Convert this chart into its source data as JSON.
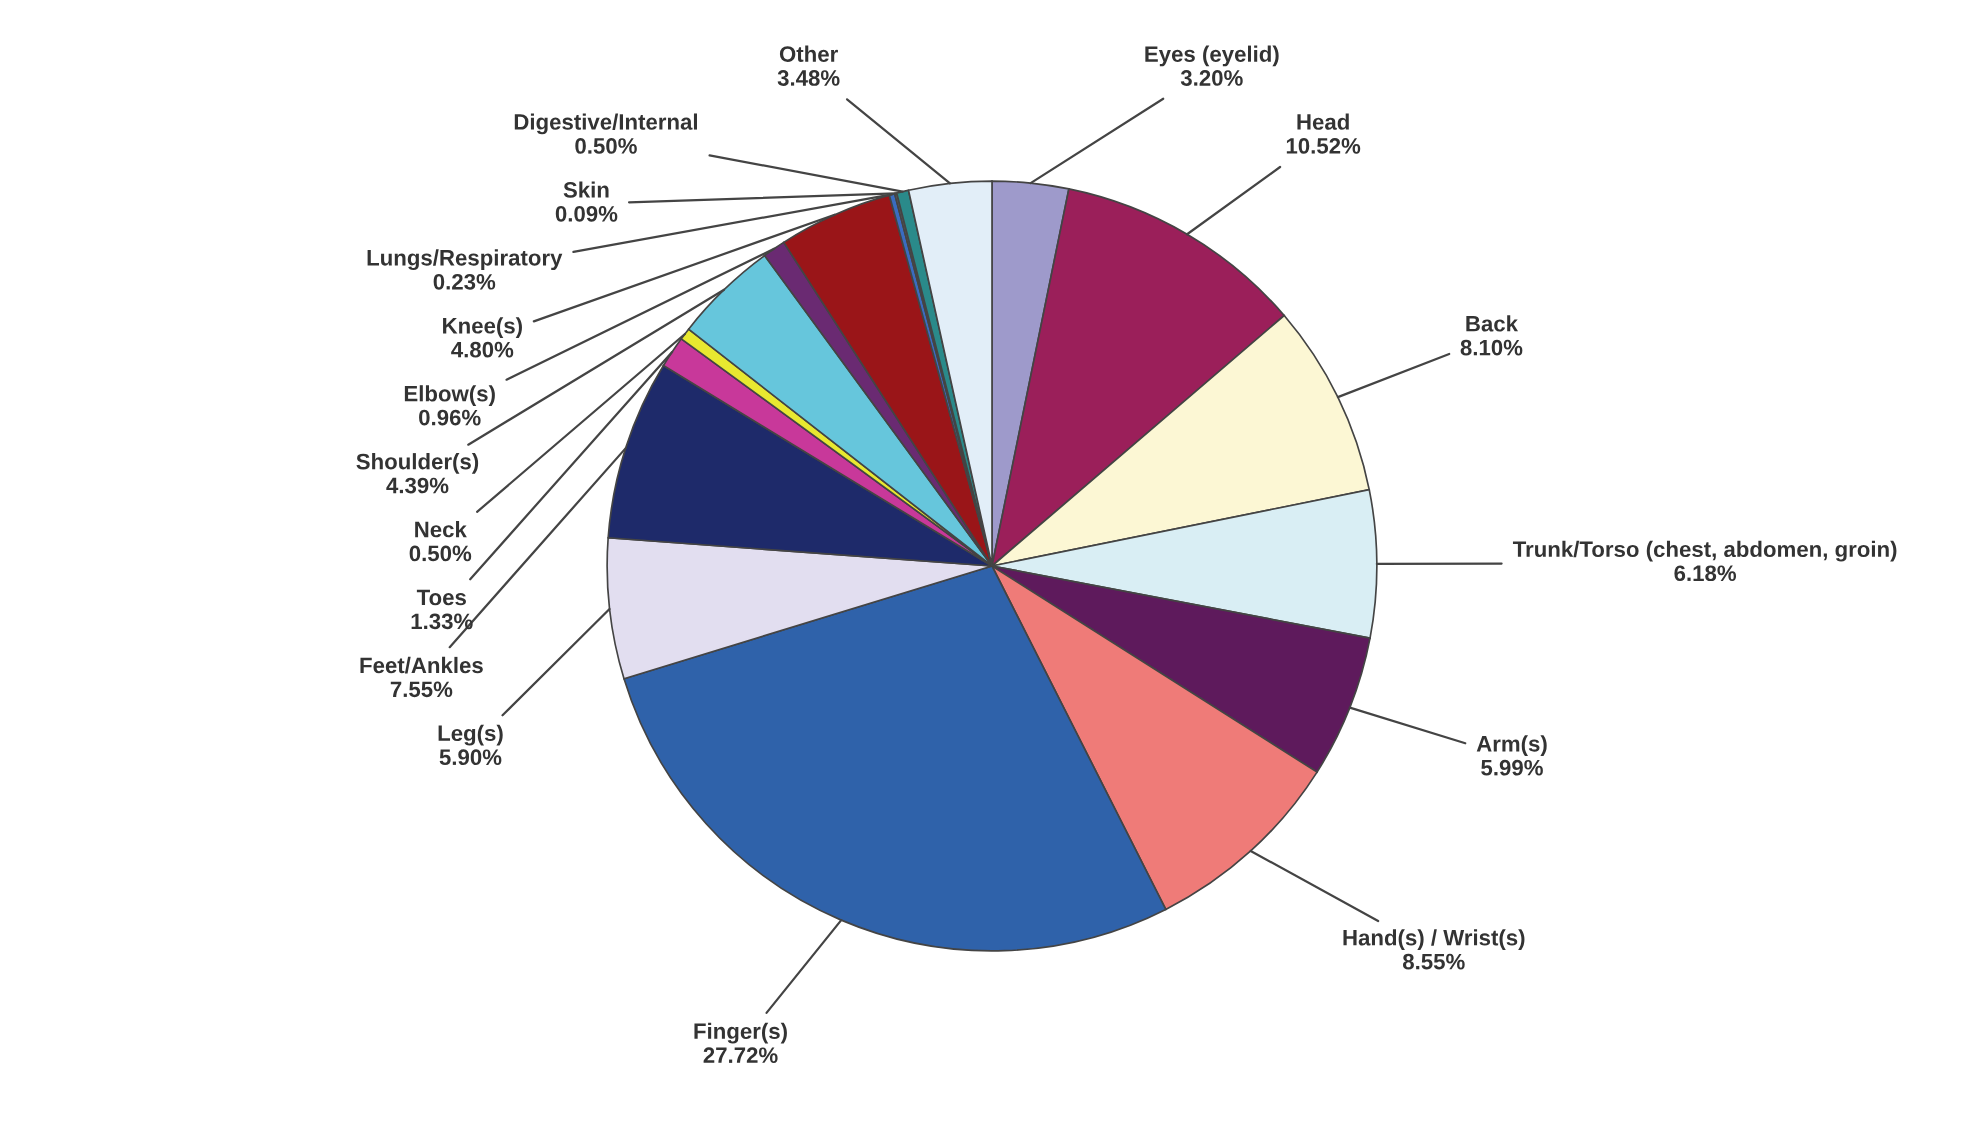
{
  "chart_data": {
    "type": "pie",
    "categories": [
      "Eyes (eyelid)",
      "Head",
      "Back",
      "Trunk/Torso (chest, abdomen, groin)",
      "Arm(s)",
      "Hand(s) / Wrist(s)",
      "Finger(s)",
      "Leg(s)",
      "Feet/Ankles",
      "Toes",
      "Neck",
      "Shoulder(s)",
      "Elbow(s)",
      "Knee(s)",
      "Lungs/Respiratory",
      "Skin",
      "Digestive/Internal",
      "Other"
    ],
    "values": [
      3.2,
      10.52,
      8.1,
      6.18,
      5.99,
      8.55,
      27.72,
      5.9,
      7.55,
      1.33,
      0.5,
      4.39,
      0.96,
      4.8,
      0.23,
      0.09,
      0.5,
      3.48
    ],
    "value_labels": [
      "3.20%",
      "10.52%",
      "8.10%",
      "6.18%",
      "5.99%",
      "8.55%",
      "27.72%",
      "5.90%",
      "7.55%",
      "1.33%",
      "0.50%",
      "4.39%",
      "0.96%",
      "4.80%",
      "0.23%",
      "0.09%",
      "0.50%",
      "3.48%"
    ],
    "colors": [
      "#9e9acb",
      "#9b1f5a",
      "#fcf7d4",
      "#d9eef4",
      "#5e1a5c",
      "#ef7b78",
      "#2f62aa",
      "#e2def0",
      "#1e2a6a",
      "#c8389a",
      "#e8e830",
      "#66c6dc",
      "#6a2a72",
      "#9a1518",
      "#3a6cc0",
      "#606060",
      "#2a8a8a",
      "#e2eef8"
    ]
  }
}
